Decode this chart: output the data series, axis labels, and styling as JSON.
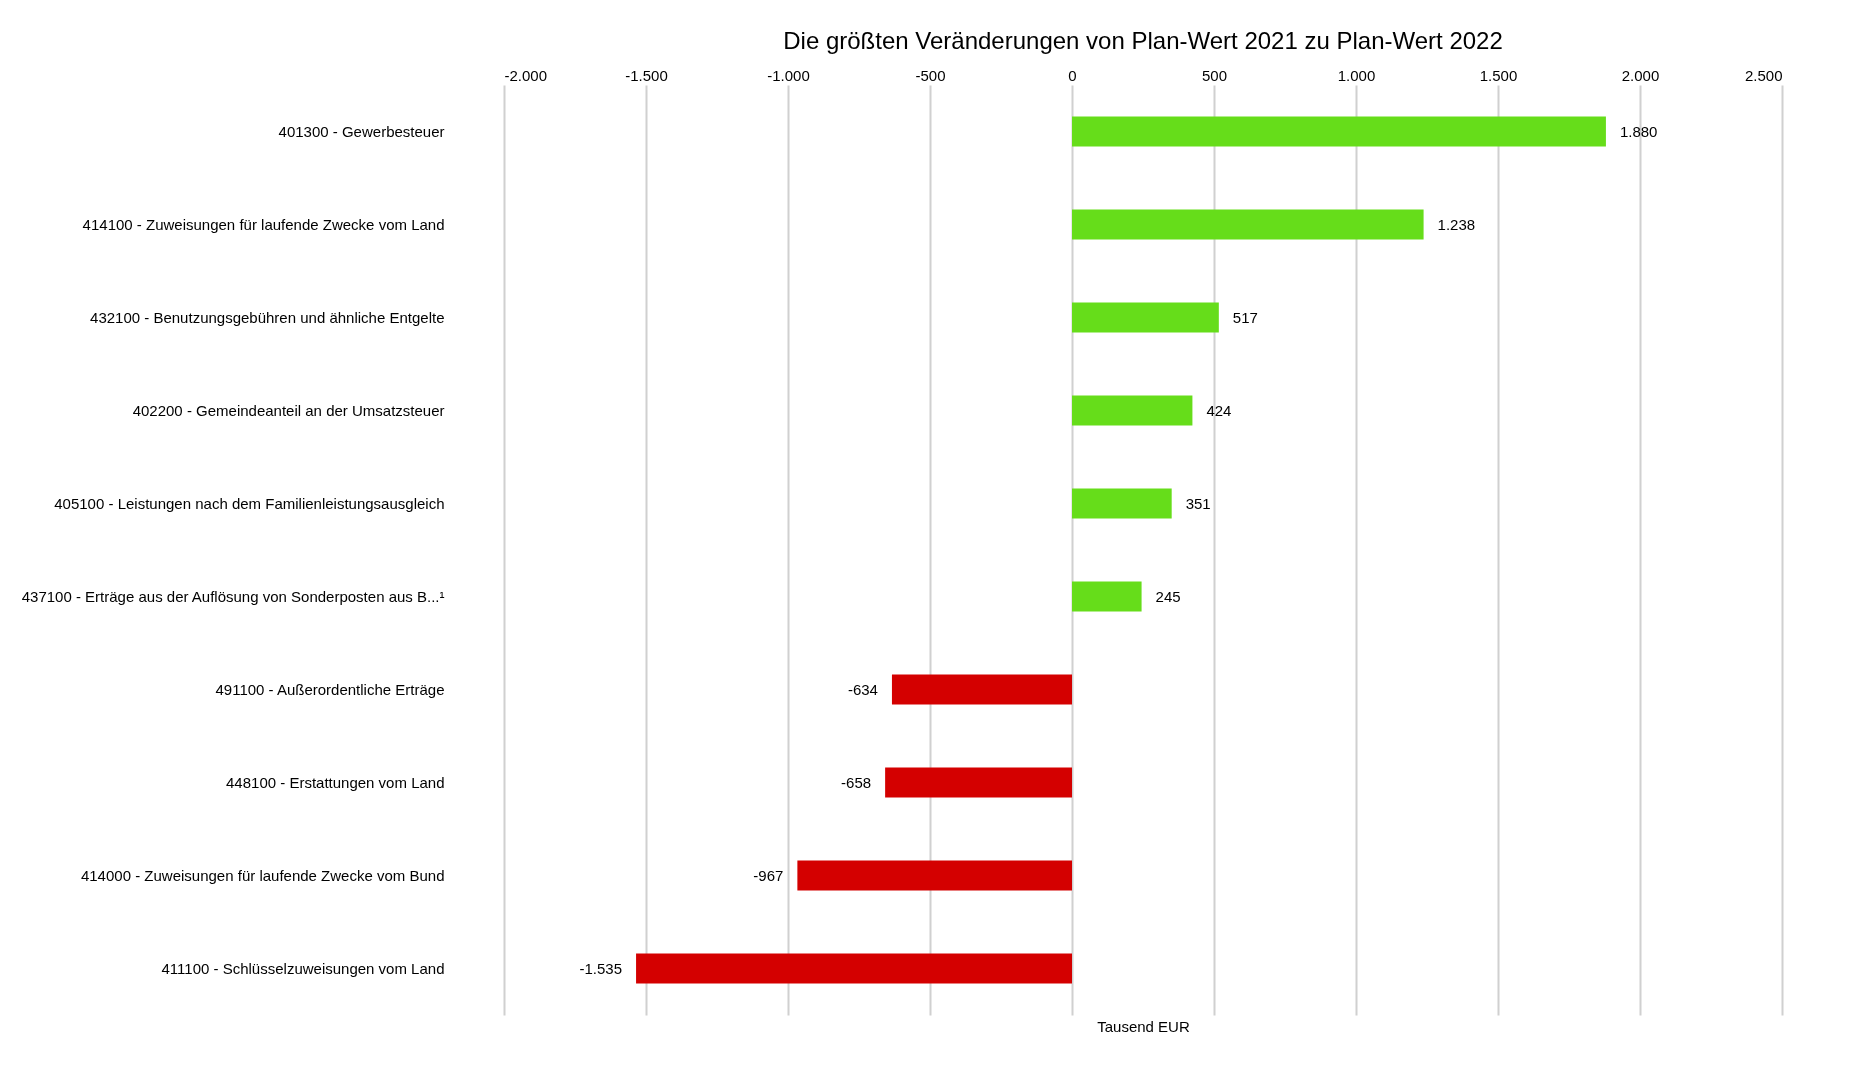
{
  "chart_data": {
    "type": "bar",
    "orientation": "horizontal",
    "title": "Die größten Veränderungen von Plan-Wert 2021 zu Plan-Wert 2022",
    "xlabel": "Tausend EUR",
    "categories": [
      "401300 - Gewerbesteuer",
      "414100 - Zuweisungen für laufende Zwecke vom Land",
      "432100 - Benutzungsgebühren und ähnliche Entgelte",
      "402200 - Gemeindeanteil an der Umsatzsteuer",
      "405100 - Leistungen nach dem Familienleistungsausgleich",
      "437100 - Erträge aus der Auflösung von Sonderposten aus B...¹",
      "491100 - Außerordentliche Erträge",
      "448100 - Erstattungen vom Land",
      "414000 - Zuweisungen für laufende Zwecke vom Bund",
      "411100 - Schlüsselzuweisungen vom Land"
    ],
    "values": [
      1880,
      1238,
      517,
      424,
      351,
      245,
      -634,
      -658,
      -967,
      -1535
    ],
    "value_labels": [
      "1.880",
      "1.238",
      "517",
      "424",
      "351",
      "245",
      "-634",
      "-658",
      "-967",
      "-1.535"
    ],
    "colors": [
      "#66dd1a",
      "#66dd1a",
      "#66dd1a",
      "#66dd1a",
      "#66dd1a",
      "#66dd1a",
      "#d40000",
      "#d40000",
      "#d40000",
      "#d40000"
    ],
    "xlim": [
      -2000,
      2500
    ],
    "xticks": [
      {
        "value": -2000,
        "label": "-2.000"
      },
      {
        "value": -1500,
        "label": "-1.500"
      },
      {
        "value": -1000,
        "label": "-1.000"
      },
      -500,
      0,
      500,
      {
        "value": 1000,
        "label": "1.000"
      },
      {
        "value": 1500,
        "label": "1.500"
      },
      {
        "value": 2000,
        "label": "2.000"
      },
      {
        "value": 2500,
        "label": "2.500"
      }
    ],
    "grid": true
  }
}
